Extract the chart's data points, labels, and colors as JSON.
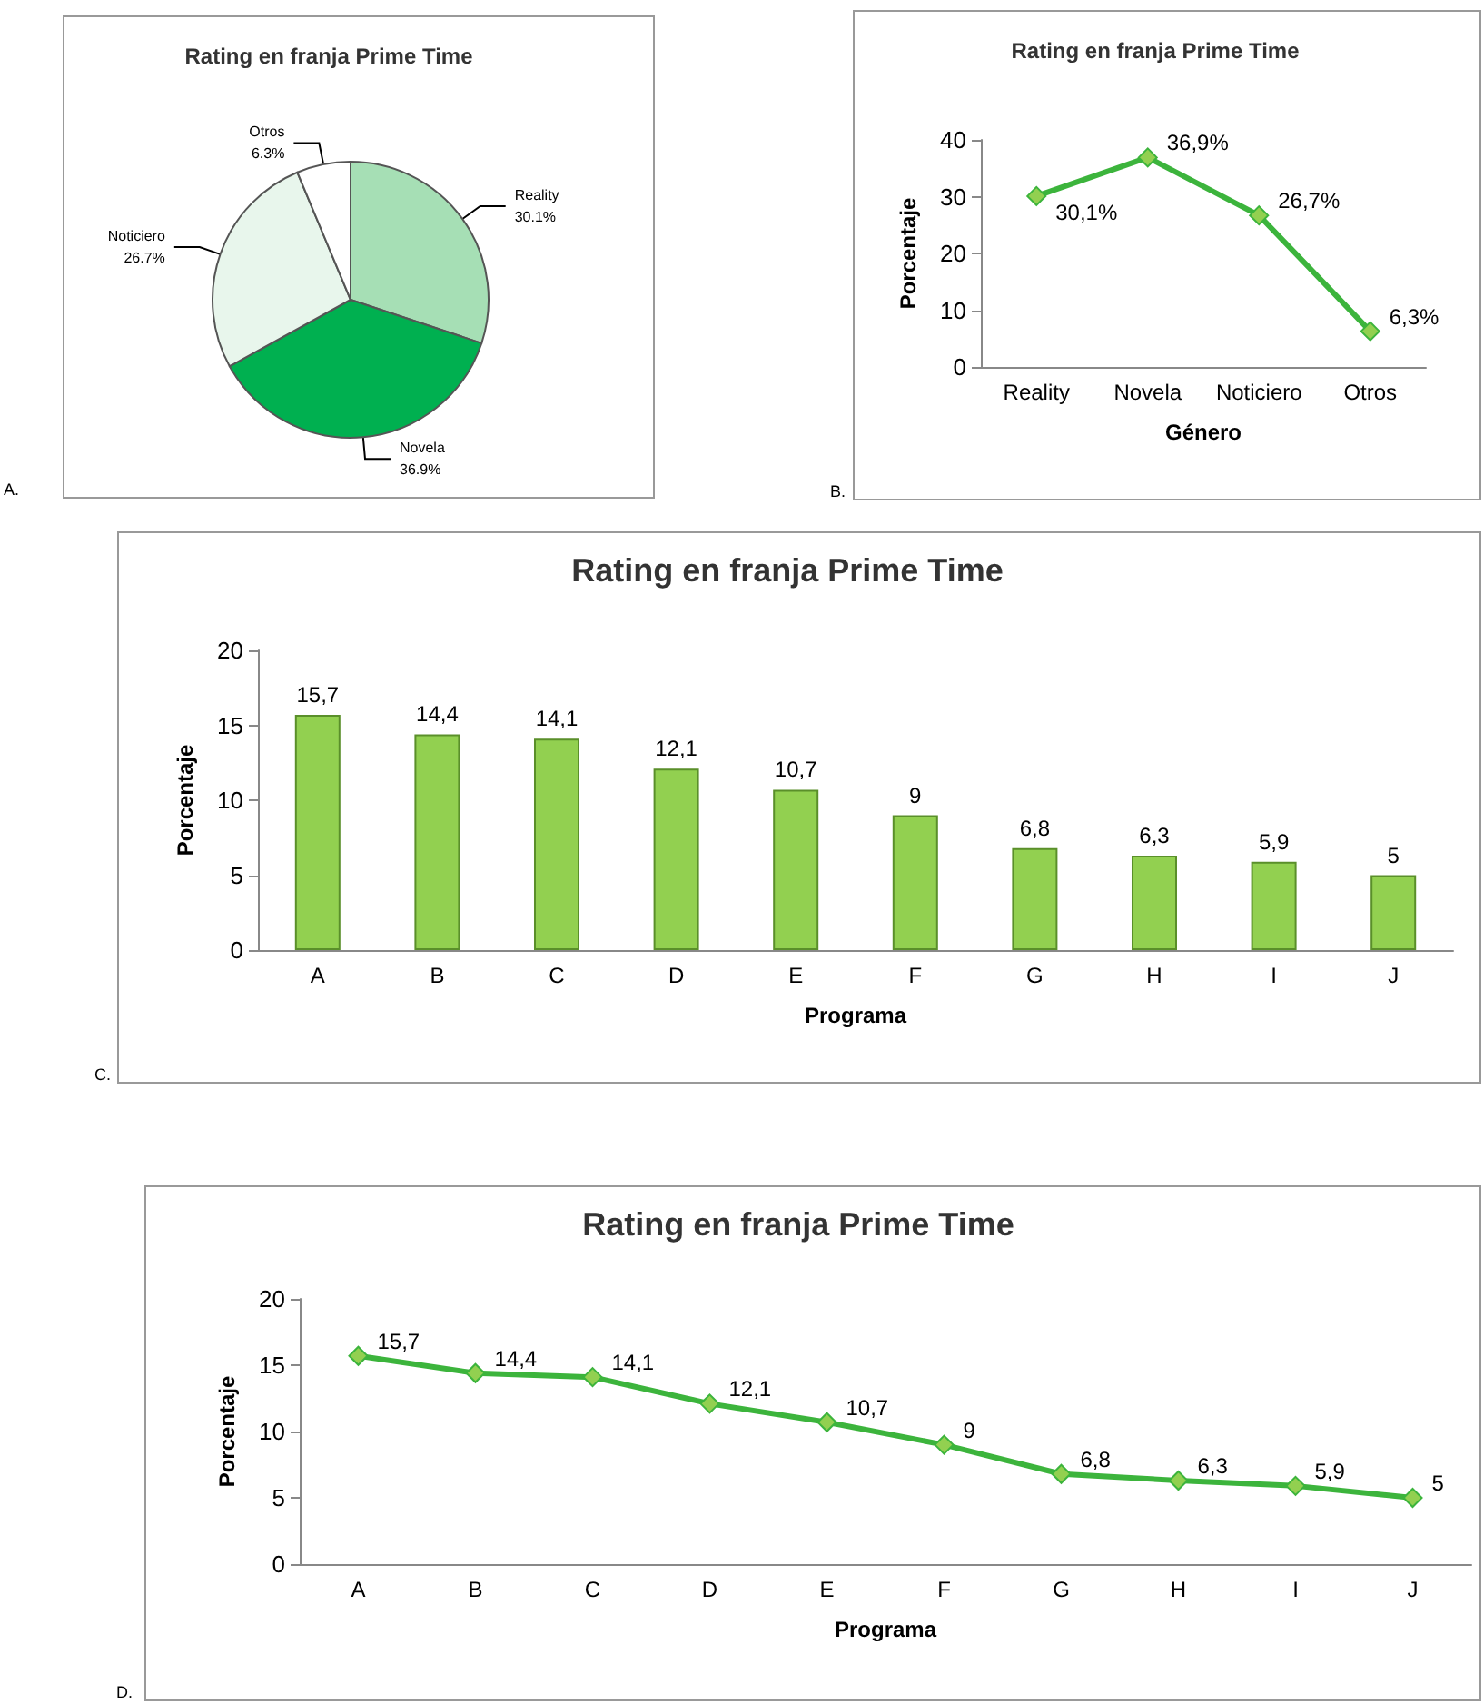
{
  "chart_data": [
    {
      "type": "pie",
      "title": "Rating en franja Prime Time",
      "categories": [
        "Reality",
        "Novela",
        "Noticiero",
        "Otros"
      ],
      "values": [
        30.1,
        36.9,
        26.7,
        6.3
      ],
      "value_labels": [
        "30.1%",
        "36.9%",
        "26.7%",
        "6.3%"
      ],
      "colors": [
        "#a6dfb5",
        "#00b050",
        "#e8f6ec",
        "#ffffff"
      ],
      "annotations": [
        "A."
      ],
      "legend": false
    },
    {
      "type": "line",
      "title": "Rating en franja Prime Time",
      "xlabel": "Género",
      "ylabel": "Porcentaje",
      "categories": [
        "Reality",
        "Novela",
        "Noticiero",
        "Otros"
      ],
      "series": [
        {
          "color": "#3cb43c",
          "values": [
            30.1,
            36.9,
            26.7,
            6.3
          ],
          "value_labels": [
            "30,1%",
            "36,9%",
            "26,7%",
            "6,3%"
          ]
        }
      ],
      "ylim": [
        0,
        40
      ],
      "yticks": [
        0,
        10,
        20,
        30,
        40
      ],
      "marker": "diamond",
      "grid": false,
      "legend": false,
      "annotations": [
        "B."
      ]
    },
    {
      "type": "bar",
      "title": "Rating en franja Prime Time",
      "xlabel": "Programa",
      "ylabel": "Porcentaje",
      "categories": [
        "A",
        "B",
        "C",
        "D",
        "E",
        "F",
        "G",
        "H",
        "I",
        "J"
      ],
      "series": [
        {
          "color": "#92d050",
          "values": [
            15.7,
            14.4,
            14.1,
            12.1,
            10.7,
            9,
            6.8,
            6.3,
            5.9,
            5
          ],
          "value_labels": [
            "15,7",
            "14,4",
            "14,1",
            "12,1",
            "10,7",
            "9",
            "6,8",
            "6,3",
            "5,9",
            "5"
          ]
        }
      ],
      "ylim": [
        0,
        20
      ],
      "yticks": [
        0,
        5,
        10,
        15,
        20
      ],
      "grid": false,
      "legend": false,
      "annotations": [
        "C."
      ]
    },
    {
      "type": "line",
      "title": "Rating en franja Prime Time",
      "xlabel": "Programa",
      "ylabel": "Porcentaje",
      "categories": [
        "A",
        "B",
        "C",
        "D",
        "E",
        "F",
        "G",
        "H",
        "I",
        "J"
      ],
      "series": [
        {
          "color": "#3cb43c",
          "values": [
            15.7,
            14.4,
            14.1,
            12.1,
            10.7,
            9,
            6.8,
            6.3,
            5.9,
            5
          ],
          "value_labels": [
            "15,7",
            "14,4",
            "14,1",
            "12,1",
            "10,7",
            "9",
            "6,8",
            "6,3",
            "5,9",
            "5"
          ]
        }
      ],
      "ylim": [
        0,
        20
      ],
      "yticks": [
        0,
        5,
        10,
        15,
        20
      ],
      "marker": "diamond",
      "grid": false,
      "legend": false,
      "annotations": [
        "D."
      ]
    }
  ]
}
